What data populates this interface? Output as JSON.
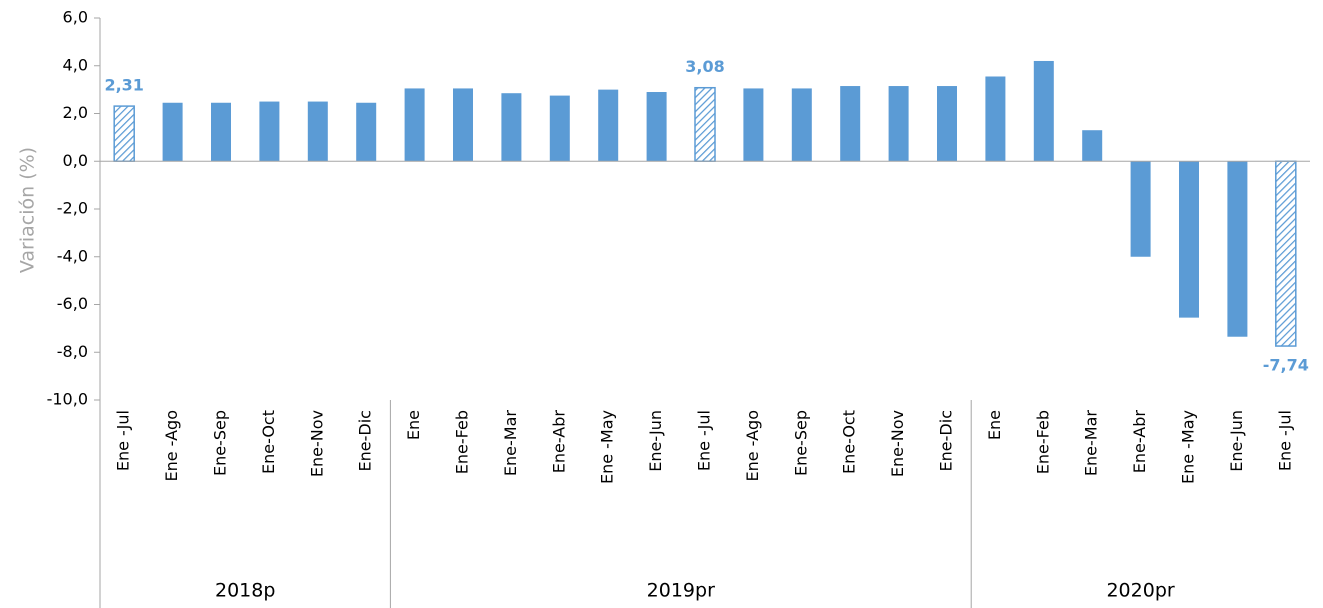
{
  "chart_data": {
    "type": "bar",
    "y_label": "Variación  (%)",
    "categories": [
      "Ene -Jul",
      "Ene -Ago",
      "Ene-Sep",
      "Ene-Oct",
      "Ene-Nov",
      "Ene-Dic",
      "Ene",
      "Ene-Feb",
      "Ene-Mar",
      "Ene-Abr",
      "Ene -May",
      "Ene-Jun",
      "Ene -Jul",
      "Ene -Ago",
      "Ene-Sep",
      "Ene-Oct",
      "Ene-Nov",
      "Ene-Dic",
      "Ene",
      "Ene-Feb",
      "Ene-Mar",
      "Ene-Abr",
      "Ene -May",
      "Ene-Jun",
      "Ene -Jul"
    ],
    "groups": [
      {
        "label": "2018p",
        "size": 6
      },
      {
        "label": "2019pr",
        "size": 12
      },
      {
        "label": "2020pr",
        "size": 7
      }
    ],
    "values": [
      2.31,
      2.45,
      2.45,
      2.5,
      2.5,
      2.45,
      3.05,
      3.05,
      2.85,
      2.75,
      3.0,
      2.9,
      3.08,
      3.05,
      3.05,
      3.15,
      3.15,
      3.15,
      3.55,
      4.2,
      1.3,
      -4.0,
      -6.55,
      -7.35,
      -7.74
    ],
    "value_labels": [
      "2,31",
      null,
      null,
      null,
      null,
      null,
      null,
      null,
      null,
      null,
      null,
      null,
      "3,08",
      null,
      null,
      null,
      null,
      null,
      null,
      null,
      null,
      null,
      null,
      null,
      "-7,74"
    ],
    "color": "#5b9bd5",
    "ylim": [
      -10,
      6
    ],
    "yticks": [
      {
        "value": -10,
        "label": "-10,0"
      },
      {
        "value": -8,
        "label": "-8,0"
      },
      {
        "value": -6,
        "label": "-6,0"
      },
      {
        "value": -4,
        "label": "-4,0"
      },
      {
        "value": -2,
        "label": "-2,0"
      },
      {
        "value": 0,
        "label": "0,0"
      },
      {
        "value": 2,
        "label": "2,0"
      },
      {
        "value": 4,
        "label": "4,0"
      },
      {
        "value": 6,
        "label": "6,0"
      }
    ],
    "grid": false
  }
}
